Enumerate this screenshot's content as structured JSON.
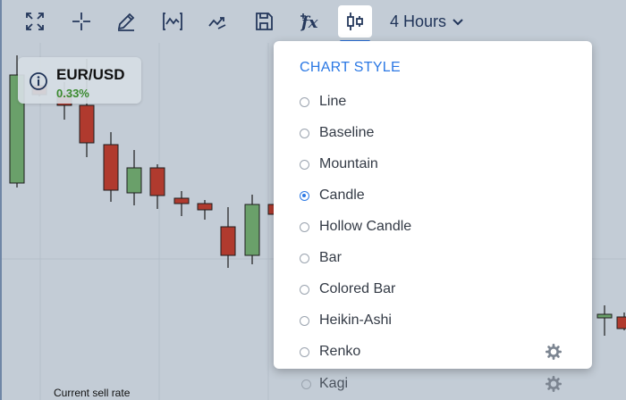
{
  "toolbar": {
    "tools": [
      {
        "icon": "fullscreen-icon"
      },
      {
        "icon": "crosshair-icon"
      },
      {
        "icon": "pencil-icon"
      },
      {
        "icon": "indicator-icon"
      },
      {
        "icon": "trend-icon"
      },
      {
        "icon": "save-icon"
      },
      {
        "icon": "function-icon",
        "label": "fx"
      },
      {
        "icon": "candle-style-icon",
        "active": true
      }
    ],
    "timeframe": "4 Hours"
  },
  "instrument": {
    "pair": "EUR/USD",
    "change": "0.33%",
    "change_color": "#3a8a2f"
  },
  "chart": {
    "bottom_label": "Current sell rate",
    "up_color": "#6aa06a",
    "down_color": "#b03a2e"
  },
  "chart_style_menu": {
    "title": "CHART STYLE",
    "accent": "#2b78e4",
    "selected": "Candle",
    "options": [
      {
        "label": "Line",
        "gear": false
      },
      {
        "label": "Baseline",
        "gear": false
      },
      {
        "label": "Mountain",
        "gear": false
      },
      {
        "label": "Candle",
        "gear": false
      },
      {
        "label": "Hollow Candle",
        "gear": false
      },
      {
        "label": "Bar",
        "gear": false
      },
      {
        "label": "Colored Bar",
        "gear": false
      },
      {
        "label": "Heikin-Ashi",
        "gear": false
      },
      {
        "label": "Renko",
        "gear": true
      }
    ],
    "overflow_option": {
      "label": "Kagi",
      "gear": true
    }
  }
}
